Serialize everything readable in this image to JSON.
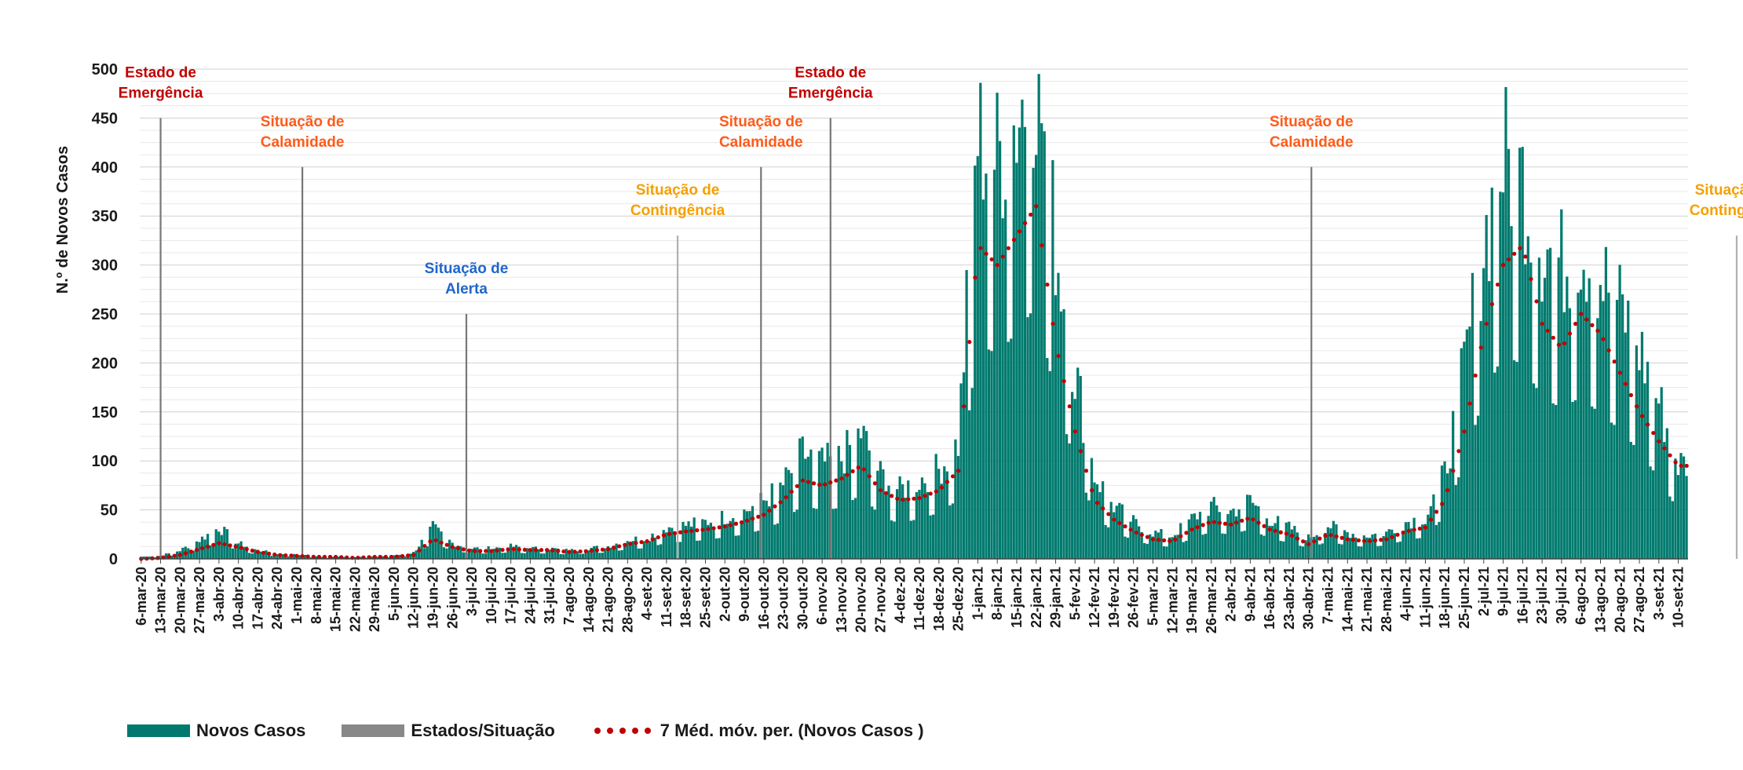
{
  "chart_data": {
    "type": "bar",
    "title": "",
    "ylabel": "N.º de Novos Casos",
    "xlabel": "",
    "ylim": [
      0,
      500
    ],
    "yticks": [
      0,
      50,
      100,
      150,
      200,
      250,
      300,
      350,
      400,
      450,
      500
    ],
    "grid": true,
    "legend_position": "bottom",
    "colors": {
      "bars": "#007a6e",
      "events": "#888888",
      "moving_avg": "#c00000"
    },
    "x_tick_labels": [
      "6-mar-20",
      "13-mar-20",
      "20-mar-20",
      "27-mar-20",
      "3-abr-20",
      "10-abr-20",
      "17-abr-20",
      "24-abr-20",
      "1-mai-20",
      "8-mai-20",
      "15-mai-20",
      "22-mai-20",
      "29-mai-20",
      "5-jun-20",
      "12-jun-20",
      "19-jun-20",
      "26-jun-20",
      "3-jul-20",
      "10-jul-20",
      "17-jul-20",
      "24-jul-20",
      "31-jul-20",
      "7-ago-20",
      "14-ago-20",
      "21-ago-20",
      "28-ago-20",
      "4-set-20",
      "11-set-20",
      "18-set-20",
      "25-set-20",
      "2-out-20",
      "9-out-20",
      "16-out-20",
      "23-out-20",
      "30-out-20",
      "6-nov-20",
      "13-nov-20",
      "20-nov-20",
      "27-nov-20",
      "4-dez-20",
      "11-dez-20",
      "18-dez-20",
      "25-dez-20",
      "1-jan-21",
      "8-jan-21",
      "15-jan-21",
      "22-jan-21",
      "29-jan-21",
      "5-fev-21",
      "12-fev-21",
      "19-fev-21",
      "26-fev-21",
      "5-mar-21",
      "12-mar-21",
      "19-mar-21",
      "26-mar-21",
      "2-abr-21",
      "9-abr-21",
      "16-abr-21",
      "23-abr-21",
      "30-abr-21",
      "7-mai-21",
      "14-mai-21",
      "21-mai-21",
      "28-mai-21",
      "4-jun-21",
      "11-jun-21",
      "18-jun-21",
      "25-jun-21",
      "2-jul-21",
      "9-jul-21",
      "16-jul-21",
      "23-jul-21",
      "30-jul-21",
      "6-ago-21",
      "13-ago-21",
      "20-ago-21",
      "27-ago-21",
      "3-set-21",
      "10-set-21"
    ],
    "weekly_series_anchors": {
      "name_cases": "Novos Casos",
      "name_avg": "7 Méd. móv. per. (Novos Casos )",
      "avg_values": [
        0,
        1,
        4,
        10,
        16,
        12,
        7,
        4,
        3,
        2,
        2,
        1,
        2,
        2,
        4,
        20,
        12,
        8,
        8,
        10,
        9,
        9,
        7,
        8,
        10,
        15,
        18,
        25,
        28,
        30,
        33,
        38,
        45,
        60,
        80,
        75,
        82,
        95,
        70,
        60,
        62,
        70,
        90,
        320,
        300,
        330,
        360,
        220,
        130,
        60,
        40,
        28,
        20,
        18,
        30,
        38,
        35,
        42,
        30,
        25,
        15,
        25,
        20,
        18,
        20,
        28,
        32,
        60,
        130,
        230,
        300,
        320,
        240,
        215,
        250,
        230,
        190,
        150,
        120,
        95
      ],
      "case_values": [
        2,
        3,
        8,
        18,
        30,
        15,
        8,
        5,
        4,
        2,
        2,
        2,
        2,
        3,
        6,
        30,
        15,
        10,
        10,
        12,
        10,
        10,
        8,
        10,
        12,
        18,
        20,
        30,
        32,
        35,
        40,
        45,
        55,
        70,
        100,
        90,
        95,
        120,
        80,
        65,
        75,
        85,
        110,
        400,
        380,
        420,
        470,
        300,
        180,
        80,
        50,
        35,
        25,
        22,
        38,
        50,
        45,
        55,
        38,
        30,
        20,
        32,
        25,
        22,
        25,
        35,
        40,
        80,
        180,
        300,
        380,
        360,
        300,
        280,
        300,
        270,
        240,
        200,
        150,
        90
      ]
    },
    "events": [
      {
        "date": "13-mar-20",
        "label": "Estado de Emergência",
        "color": "#c00000"
      },
      {
        "date": "3-mai-20",
        "label": "Situação de Calamidade",
        "color": "#ff5b1a"
      },
      {
        "date": "1-jul-20",
        "label": "Situação de Alerta",
        "color": "#1f66cc"
      },
      {
        "date": "15-set-20",
        "label": "Situação de Contingência",
        "color": "#f5a000"
      },
      {
        "date": "15-out-20",
        "label": "Situação de Calamidade",
        "color": "#ff5b1a"
      },
      {
        "date": "9-nov-20",
        "label": "Estado de Emergência",
        "color": "#c00000"
      },
      {
        "date": "1-mai-21",
        "label": "Situação de Calamidade",
        "color": "#ff5b1a"
      },
      {
        "date": "1-out-21",
        "label": "Situação de Contingência",
        "color": "#f5a000"
      }
    ]
  },
  "legend": {
    "cases": "Novos Casos",
    "events": "Estados/Situação",
    "avg": "7 Méd. móv. per. (Novos Casos )"
  }
}
